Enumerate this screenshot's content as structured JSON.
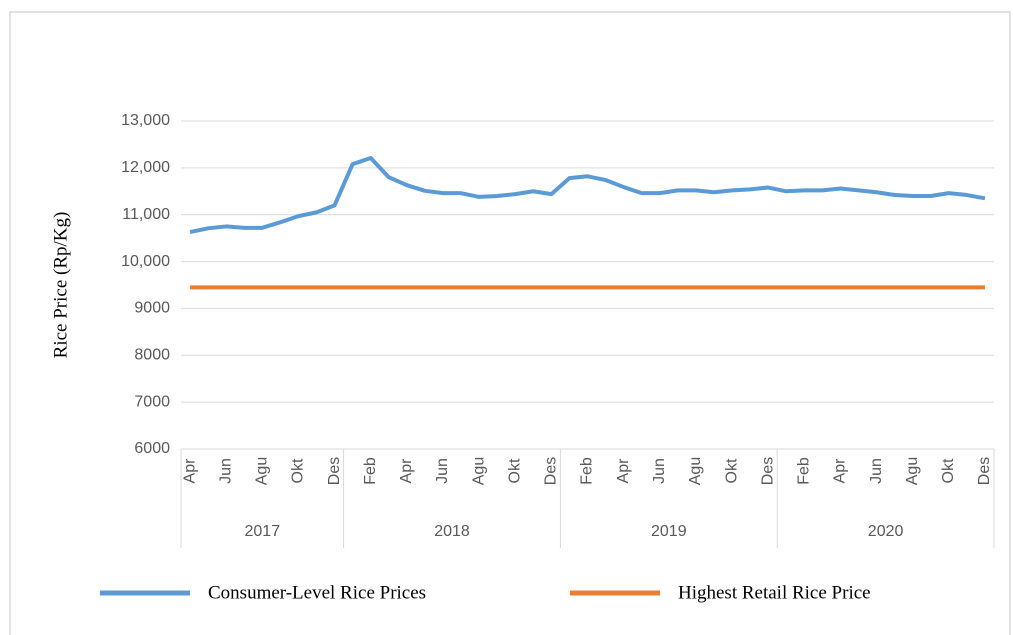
{
  "chart_data": {
    "type": "line",
    "y_label": "Rice Price (Rp/Kg)",
    "categories": [
      "Apr",
      null,
      "Jun",
      null,
      "Agu",
      null,
      "Okt",
      null,
      "Des",
      null,
      "Feb",
      null,
      "Apr",
      null,
      "Jun",
      null,
      "Agu",
      null,
      "Okt",
      null,
      "Des",
      null,
      "Feb",
      null,
      "Apr",
      null,
      "Jun",
      null,
      "Agu",
      null,
      "Okt",
      null,
      "Des",
      null,
      "Feb",
      null,
      "Apr",
      null,
      "Jun",
      null,
      "Agu",
      null,
      "Okt",
      null,
      "Des"
    ],
    "groups": [
      {
        "label": "2017",
        "count": 9
      },
      {
        "label": "2018",
        "count": 12
      },
      {
        "label": "2019",
        "count": 12
      },
      {
        "label": "2020",
        "count": 12
      }
    ],
    "series": [
      {
        "name": "Consumer-Level Rice Prices",
        "color": "#5b9bd5",
        "values": [
          10630,
          10710,
          10750,
          10720,
          10720,
          10840,
          10970,
          11050,
          11200,
          12080,
          12210,
          11800,
          11630,
          11510,
          11460,
          11460,
          11380,
          11400,
          11440,
          11500,
          11440,
          11780,
          11820,
          11740,
          11590,
          11460,
          11460,
          11520,
          11520,
          11480,
          11520,
          11540,
          11580,
          11500,
          11520,
          11520,
          11560,
          11520,
          11480,
          11420,
          11400,
          11400,
          11460,
          11420,
          11350
        ]
      },
      {
        "name": "Highest Retail Rice Price",
        "color": "#ed7d31",
        "values": [
          9450,
          9450,
          9450,
          9450,
          9450,
          9450,
          9450,
          9450,
          9450,
          9450,
          9450,
          9450,
          9450,
          9450,
          9450,
          9450,
          9450,
          9450,
          9450,
          9450,
          9450,
          9450,
          9450,
          9450,
          9450,
          9450,
          9450,
          9450,
          9450,
          9450,
          9450,
          9450,
          9450,
          9450,
          9450,
          9450,
          9450,
          9450,
          9450,
          9450,
          9450,
          9450,
          9450,
          9450,
          9450
        ]
      }
    ],
    "ylim": [
      6000,
      13000
    ],
    "yticks": [
      6000,
      7000,
      8000,
      9000,
      {
        "value": 10000,
        "label": "10,000"
      },
      {
        "value": 11000,
        "label": "11,000"
      },
      {
        "value": 12000,
        "label": "12,000"
      },
      {
        "value": 13000,
        "label": "13,000"
      }
    ],
    "grid": true,
    "legend": "bottom"
  }
}
